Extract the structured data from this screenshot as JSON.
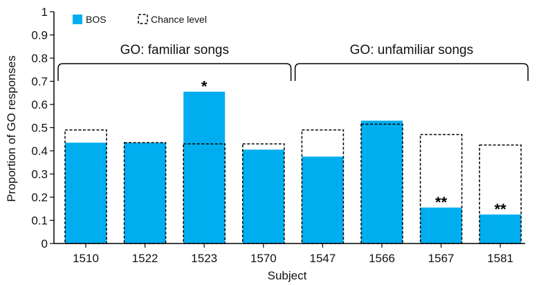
{
  "chart_data": {
    "type": "bar",
    "xlabel": "Subject",
    "ylabel": "Proportion of GO responses",
    "ylim": [
      0,
      1
    ],
    "yticks": [
      0,
      0.1,
      0.2,
      0.3,
      0.4,
      0.5,
      0.6,
      0.7,
      0.8,
      0.9,
      1
    ],
    "ytick_labels": [
      "0",
      "0.1",
      "0.2",
      "0.3",
      "0.4",
      "0.5",
      "0.6",
      "0.7",
      "0.8",
      "0.9",
      "1"
    ],
    "categories": [
      "1510",
      "1522",
      "1523",
      "1570",
      "1547",
      "1566",
      "1567",
      "1581"
    ],
    "legend_placement": "top-left",
    "series": [
      {
        "name": "BOS",
        "style": "filled",
        "color": "#00AEEF",
        "values": [
          0.435,
          0.435,
          0.655,
          0.405,
          0.375,
          0.53,
          0.155,
          0.125
        ]
      },
      {
        "name": "Chance level",
        "style": "dashed-outline",
        "color": "#000000",
        "values": [
          0.49,
          0.435,
          0.43,
          0.43,
          0.49,
          0.515,
          0.47,
          0.425
        ]
      }
    ],
    "groups": [
      {
        "label": "GO: familiar songs",
        "categories": [
          "1510",
          "1522",
          "1523",
          "1570"
        ]
      },
      {
        "label": "GO: unfamiliar songs",
        "categories": [
          "1547",
          "1566",
          "1567",
          "1581"
        ]
      }
    ],
    "annotations": [
      {
        "category": "1523",
        "text": "*"
      },
      {
        "category": "1567",
        "text": "**"
      },
      {
        "category": "1581",
        "text": "**"
      }
    ]
  }
}
